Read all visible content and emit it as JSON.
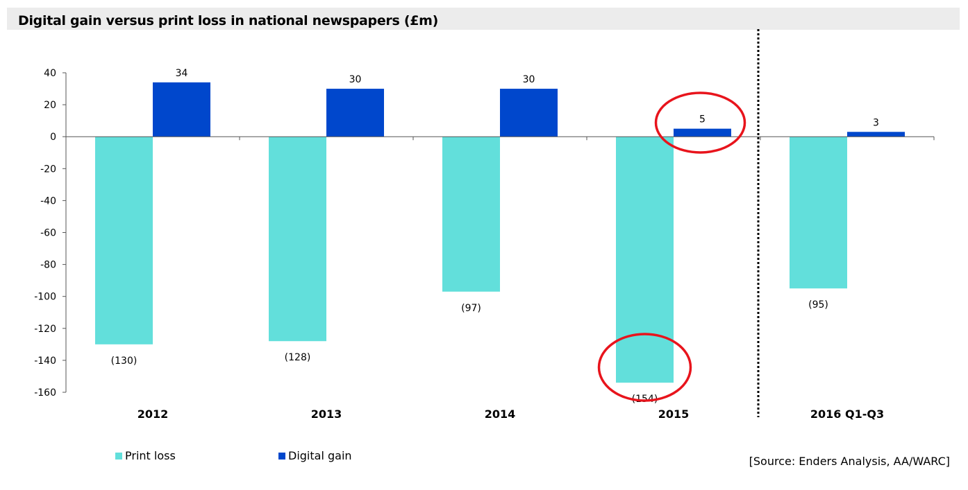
{
  "title": "Digital gain versus print loss in national newspapers (£m)",
  "source": "[Source: Enders Analysis, AA/WARC]",
  "colors": {
    "print_loss": "#62dfdb",
    "digital_gain": "#0047cc",
    "highlight": "#e8141c",
    "axis": "#555555",
    "title_bar": "#ececec"
  },
  "chart_data": {
    "type": "bar",
    "title": "Digital gain versus print loss in national newspapers (£m)",
    "categories": [
      "2012",
      "2013",
      "2014",
      "2015",
      "2016 Q1-Q3"
    ],
    "series": [
      {
        "name": "Print loss",
        "values": [
          -130,
          -128,
          -97,
          -154,
          -95
        ],
        "labels": [
          "(130)",
          "(128)",
          "(97)",
          "(154)",
          "(95)"
        ]
      },
      {
        "name": "Digital gain",
        "values": [
          34,
          30,
          30,
          5,
          3
        ],
        "labels": [
          "34",
          "30",
          "30",
          "5",
          "3"
        ]
      }
    ],
    "ylim": [
      -160,
      40
    ],
    "yticks": [
      40,
      20,
      0,
      -20,
      -40,
      -60,
      -80,
      -100,
      -120,
      -140,
      -160
    ],
    "grid": false,
    "legend": "bottom-left",
    "annotations": [
      {
        "kind": "dotted-separator",
        "between": [
          "2015",
          "2016 Q1-Q3"
        ]
      },
      {
        "kind": "highlight-circle",
        "series": "Digital gain",
        "category": "2015"
      },
      {
        "kind": "highlight-circle",
        "series": "Print loss",
        "category": "2015"
      }
    ]
  }
}
